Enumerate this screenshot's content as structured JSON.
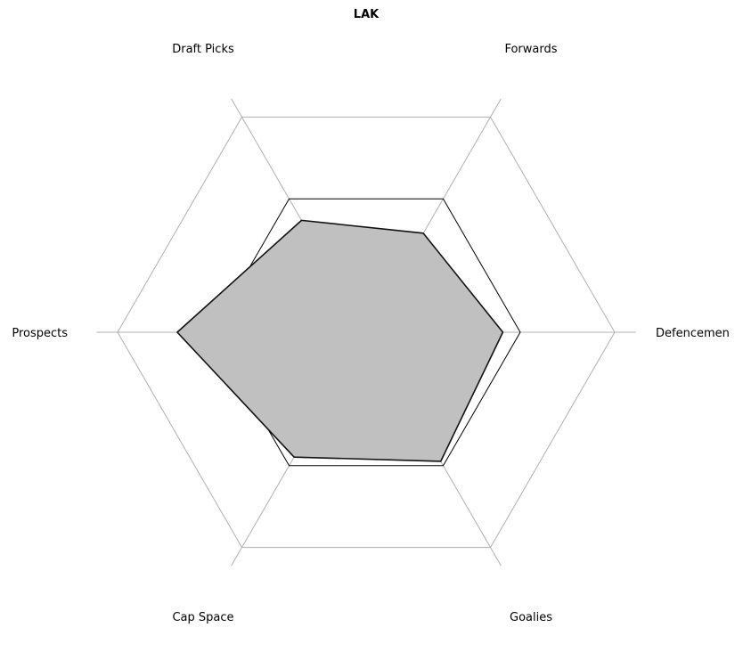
{
  "chart_data": {
    "type": "radar",
    "title": "LAK",
    "axes": [
      "Forwards",
      "Defencemen",
      "Goalies",
      "Cap Space",
      "Prospects",
      "Draft Picks"
    ],
    "rlim": [
      0,
      1
    ],
    "reference_level": 0.62,
    "series": [
      {
        "values": [
          0.46,
          0.55,
          0.6,
          0.58,
          0.76,
          0.52
        ]
      }
    ],
    "grid": true
  }
}
